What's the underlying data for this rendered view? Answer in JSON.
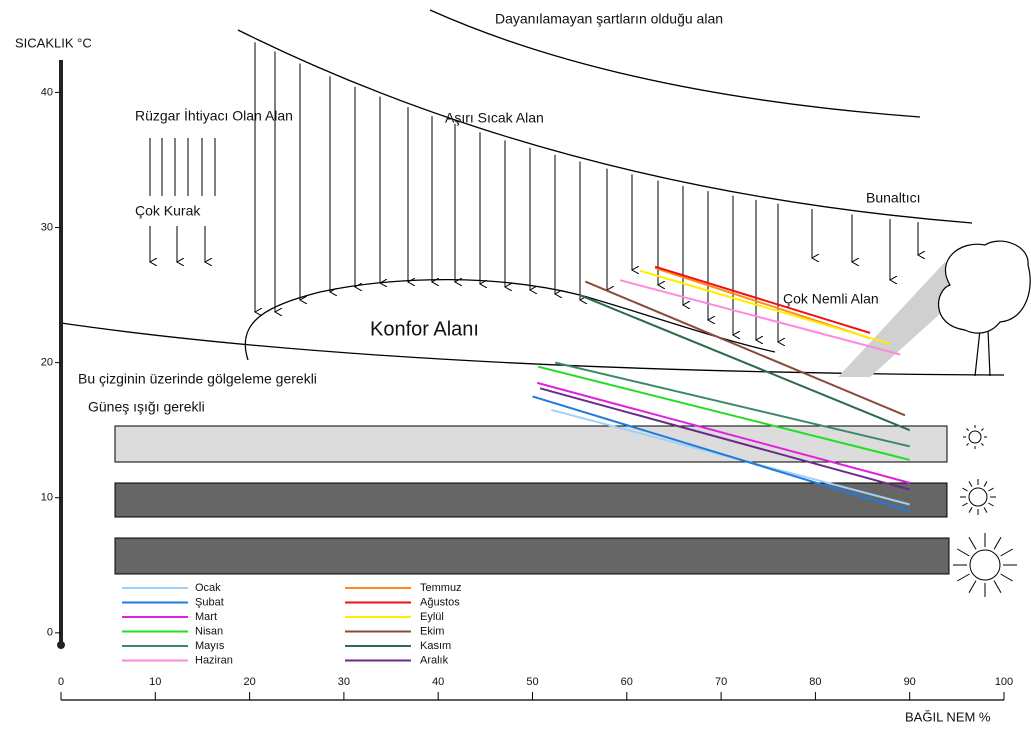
{
  "chart_data": {
    "type": "line",
    "y_label": "SICAKLIK °C",
    "x_label": "BAĞIL NEM %",
    "xlim": [
      0,
      100
    ],
    "xticks": [
      0,
      10,
      20,
      30,
      40,
      50,
      60,
      70,
      80,
      90,
      100
    ],
    "ylim": [
      -0.9,
      42.4
    ],
    "yticks": [
      0,
      10,
      20,
      30,
      40
    ],
    "annotations": [
      "Dayanılamayan şartların olduğu alan",
      "Rüzgar İhtiyacı Olan Alan",
      "Aşırı Sıcak Alan",
      "Bunaltıcı",
      "Çok Kurak",
      "Konfor Alanı",
      "Çok Nemli Alan",
      "Bu çizginin üzerinde gölgeleme gerekli",
      "Güneş ışığı gerekli"
    ],
    "series": [
      {
        "name": "Ocak",
        "color": "#9fd0f5",
        "x": [
          52,
          90
        ],
        "values": [
          16.5,
          9.5
        ]
      },
      {
        "name": "Şubat",
        "color": "#1e7be0",
        "x": [
          50,
          90
        ],
        "values": [
          17.5,
          9
        ]
      },
      {
        "name": "Mart",
        "color": "#e020e0",
        "x": [
          50.5,
          90
        ],
        "values": [
          18.5,
          11.1
        ]
      },
      {
        "name": "Nisan",
        "color": "#22dd22",
        "x": [
          50.6,
          90
        ],
        "values": [
          19.7,
          12.8
        ]
      },
      {
        "name": "Mayıs",
        "color": "#3a8a6a",
        "x": [
          52.4,
          90
        ],
        "values": [
          20,
          13.8
        ]
      },
      {
        "name": "Haziran",
        "color": "#ff88dd",
        "x": [
          59.3,
          89
        ],
        "values": [
          26.1,
          20.6
        ]
      },
      {
        "name": "Temmuz",
        "color": "#ff8c1a",
        "x": [
          63,
          85.8
        ],
        "values": [
          27,
          21.8
        ]
      },
      {
        "name": "Ağustos",
        "color": "#ee1111",
        "x": [
          63,
          85.8
        ],
        "values": [
          27.1,
          22.2
        ]
      },
      {
        "name": "Eylül",
        "color": "#ffee00",
        "x": [
          61.4,
          87.9
        ],
        "values": [
          26.8,
          21.4
        ]
      },
      {
        "name": "Ekim",
        "color": "#8b4a3a",
        "x": [
          55.6,
          89.5
        ],
        "values": [
          26,
          16.1
        ]
      },
      {
        "name": "Kasım",
        "color": "#2f6b4f",
        "x": [
          55,
          90
        ],
        "values": [
          25,
          15
        ]
      },
      {
        "name": "Aralık",
        "color": "#6a2a8a",
        "x": [
          50.8,
          90
        ],
        "values": [
          18.1,
          10.6
        ]
      }
    ]
  }
}
